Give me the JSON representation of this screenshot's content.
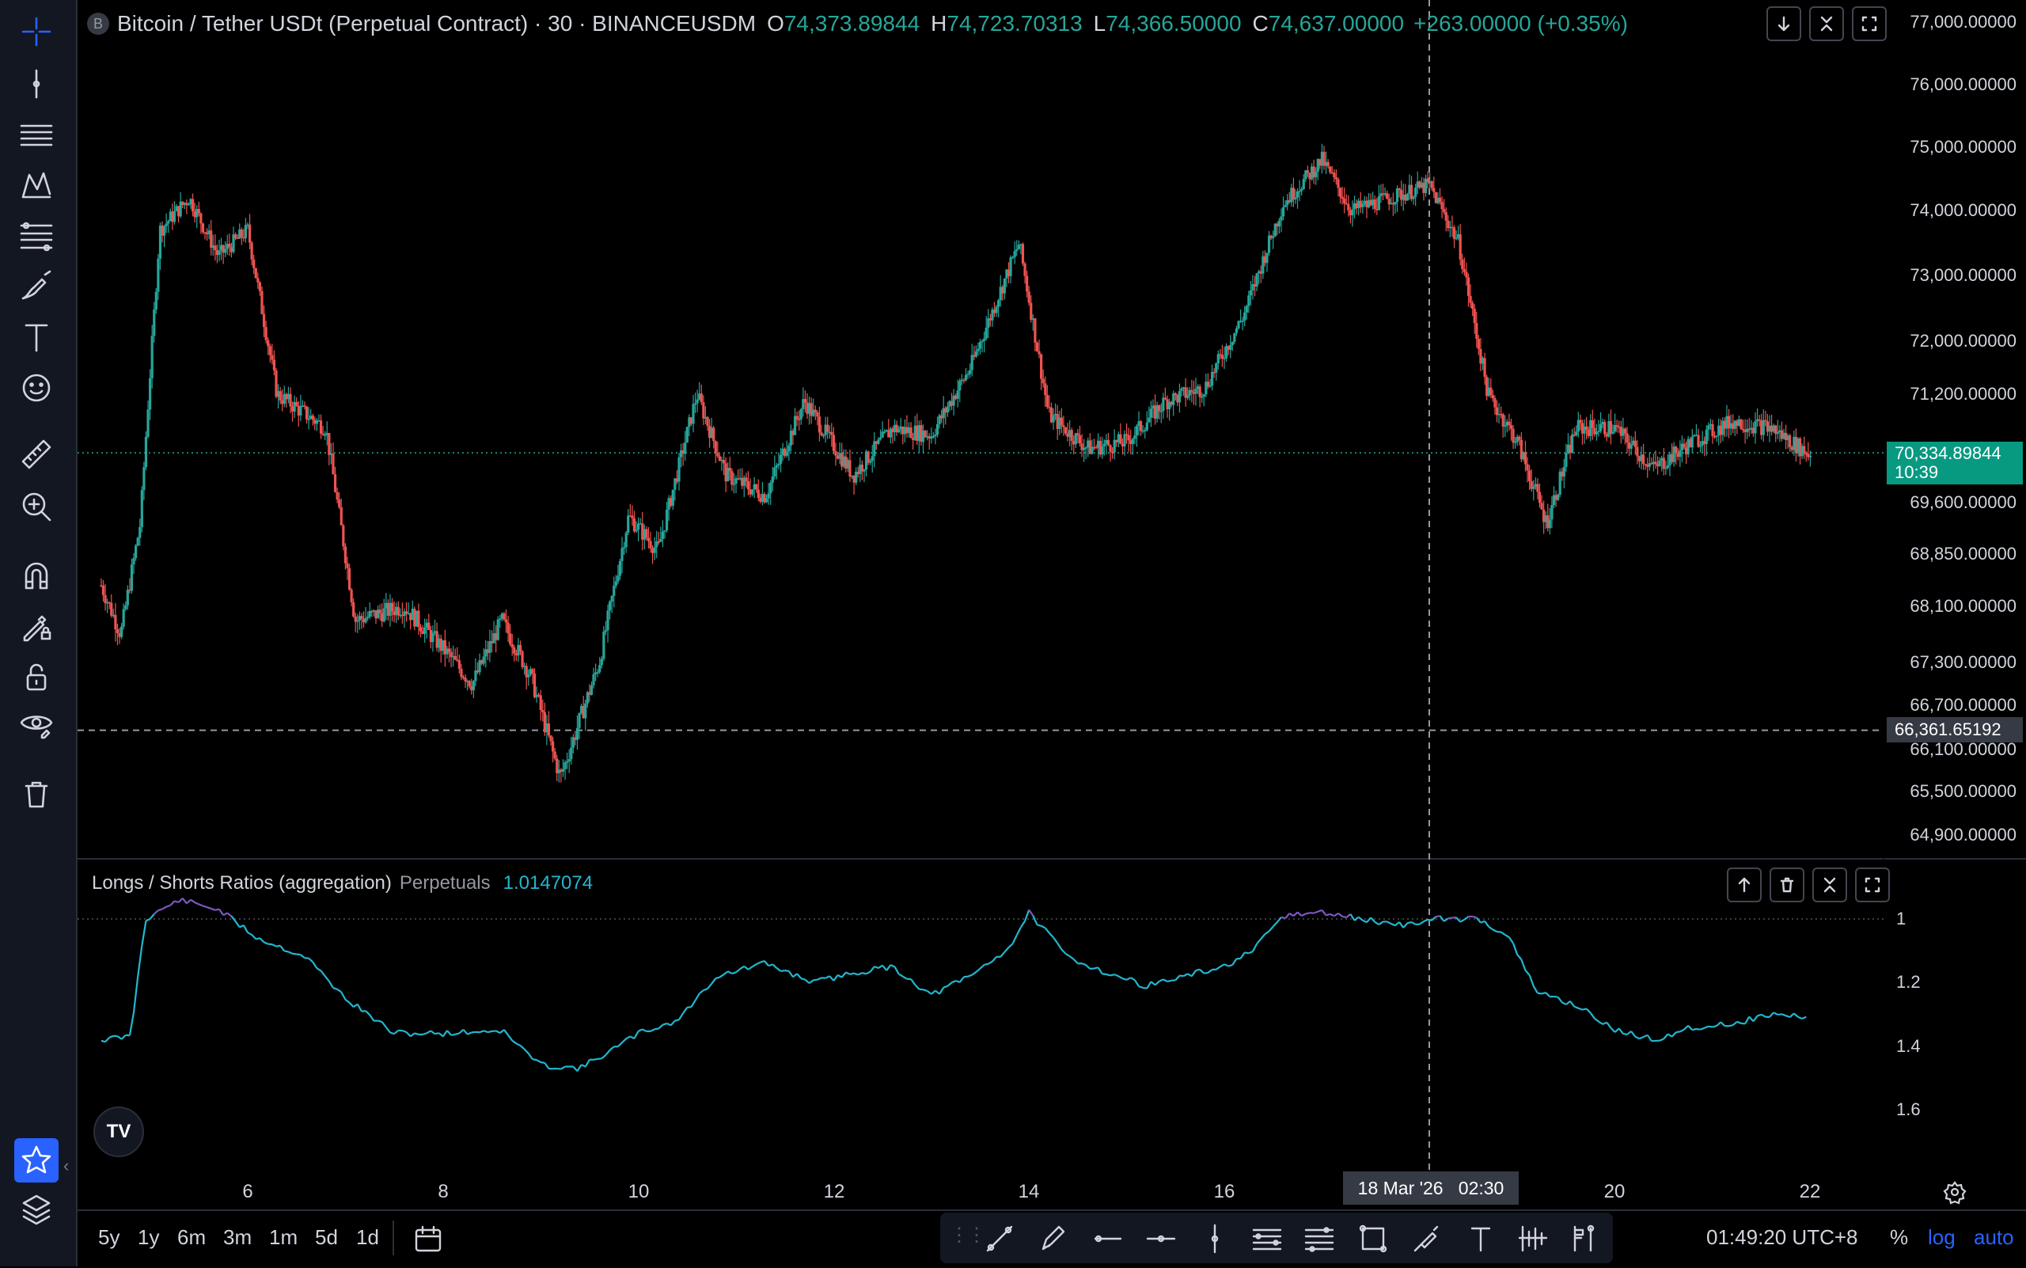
{
  "header": {
    "symbol_icon": "B",
    "title": "Bitcoin / Tether USDt (Perpetual Contract) · 30 · BINANCEUSDM",
    "open_label": "O",
    "open": "74,373.89844",
    "high_label": "H",
    "high": "74,723.70313",
    "low_label": "L",
    "low": "74,366.50000",
    "close_label": "C",
    "close": "74,637.00000",
    "change": "+263.00000 (+0.35%)"
  },
  "price_axis": {
    "labels": [
      "77,000.00000",
      "76,000.00000",
      "75,000.00000",
      "74,000.00000",
      "73,000.00000",
      "72,000.00000",
      "71,200.00000",
      "69,600.00000",
      "68,850.00000",
      "68,100.00000",
      "67,300.00000",
      "66,700.00000",
      "66,100.00000",
      "65,500.00000",
      "64,900.00000"
    ],
    "last_price": "70,334.89844",
    "countdown": "10:39",
    "crosshair_price": "66,361.65192"
  },
  "indicator": {
    "name": "Longs / Shorts Ratios (aggregation)",
    "source": "Perpetuals",
    "value": "1.0147074",
    "axis_labels": [
      "1",
      "1.2",
      "1.4",
      "1.6"
    ]
  },
  "time_axis": {
    "labels": [
      "6",
      "8",
      "10",
      "12",
      "14",
      "16",
      "20",
      "22"
    ],
    "crosshair_time": "18 Mar '26   02:30"
  },
  "timeframes": [
    "5y",
    "1y",
    "6m",
    "3m",
    "1m",
    "5d",
    "1d"
  ],
  "footer": {
    "clock": "01:49:20 UTC+8",
    "percent": "%",
    "log": "log",
    "auto": "auto"
  },
  "logo": "TV",
  "colors": {
    "up": "#26a69a",
    "down": "#ef5350",
    "ratio_line": "#22b8cf",
    "ratio_high": "#7e57c2",
    "accent": "#2962ff",
    "last_price_bg": "#089981"
  },
  "left_toolbar_icons": [
    "crosshair-icon",
    "vertical-line-icon",
    "horizontal-lines-icon",
    "pattern-icon",
    "fib-retracement-icon",
    "brush-icon",
    "text-icon",
    "emoji-icon",
    "ruler-icon",
    "zoom-in-icon",
    "magnet-icon",
    "lock-drawing-icon",
    "unlock-icon",
    "eye-icon",
    "trash-icon",
    "favorite-star-icon",
    "layers-icon"
  ],
  "chart_data": {
    "type": "candlestick",
    "x_labels": [
      "6",
      "8",
      "10",
      "12",
      "14",
      "16",
      "20",
      "22"
    ],
    "approx_path_price": [
      [
        4.5,
        68400
      ],
      [
        4.7,
        67700
      ],
      [
        4.9,
        69300
      ],
      [
        5.1,
        73700
      ],
      [
        5.4,
        74200
      ],
      [
        5.7,
        73300
      ],
      [
        6.0,
        73700
      ],
      [
        6.3,
        71200
      ],
      [
        6.8,
        70700
      ],
      [
        7.1,
        67900
      ],
      [
        7.6,
        68100
      ],
      [
        8.0,
        67500
      ],
      [
        8.3,
        67000
      ],
      [
        8.6,
        67900
      ],
      [
        8.9,
        67100
      ],
      [
        9.2,
        65700
      ],
      [
        9.6,
        67300
      ],
      [
        9.9,
        69400
      ],
      [
        10.2,
        68900
      ],
      [
        10.6,
        71200
      ],
      [
        10.9,
        70000
      ],
      [
        11.3,
        69700
      ],
      [
        11.7,
        71100
      ],
      [
        12.2,
        70000
      ],
      [
        12.6,
        70700
      ],
      [
        13.0,
        70600
      ],
      [
        13.4,
        71600
      ],
      [
        13.9,
        73500
      ],
      [
        14.2,
        70900
      ],
      [
        14.6,
        70400
      ],
      [
        15.0,
        70500
      ],
      [
        15.4,
        71100
      ],
      [
        15.8,
        71300
      ],
      [
        16.2,
        72400
      ],
      [
        16.6,
        74100
      ],
      [
        17.0,
        74800
      ],
      [
        17.3,
        74000
      ],
      [
        17.7,
        74200
      ],
      [
        18.1,
        74400
      ],
      [
        18.4,
        73500
      ],
      [
        18.7,
        71200
      ],
      [
        19.0,
        70500
      ],
      [
        19.3,
        69300
      ],
      [
        19.6,
        70700
      ],
      [
        20.0,
        70700
      ],
      [
        20.4,
        70100
      ],
      [
        20.8,
        70500
      ],
      [
        21.2,
        70800
      ],
      [
        21.6,
        70700
      ],
      [
        22.0,
        70300
      ]
    ],
    "indicator_series": {
      "name": "Longs / Shorts Ratios (aggregation)",
      "approx_path": [
        [
          4.5,
          1.38
        ],
        [
          4.8,
          1.37
        ],
        [
          4.95,
          1.0
        ],
        [
          5.3,
          0.94
        ],
        [
          5.7,
          0.97
        ],
        [
          6.1,
          1.06
        ],
        [
          6.6,
          1.12
        ],
        [
          7.0,
          1.25
        ],
        [
          7.5,
          1.36
        ],
        [
          8.0,
          1.36
        ],
        [
          8.6,
          1.35
        ],
        [
          9.0,
          1.46
        ],
        [
          9.4,
          1.47
        ],
        [
          9.8,
          1.4
        ],
        [
          10.0,
          1.36
        ],
        [
          10.4,
          1.32
        ],
        [
          10.8,
          1.18
        ],
        [
          11.3,
          1.14
        ],
        [
          11.8,
          1.2
        ],
        [
          12.2,
          1.17
        ],
        [
          12.6,
          1.15
        ],
        [
          13.0,
          1.24
        ],
        [
          13.4,
          1.18
        ],
        [
          13.8,
          1.09
        ],
        [
          14.0,
          0.98
        ],
        [
          14.4,
          1.12
        ],
        [
          14.8,
          1.17
        ],
        [
          15.2,
          1.21
        ],
        [
          15.6,
          1.18
        ],
        [
          16.0,
          1.15
        ],
        [
          16.3,
          1.1
        ],
        [
          16.6,
          0.99
        ],
        [
          17.0,
          0.98
        ],
        [
          17.4,
          1.0
        ],
        [
          17.8,
          1.02
        ],
        [
          18.2,
          1.0
        ],
        [
          18.6,
          1.0
        ],
        [
          18.9,
          1.05
        ],
        [
          19.2,
          1.23
        ],
        [
          19.6,
          1.27
        ],
        [
          20.0,
          1.35
        ],
        [
          20.4,
          1.38
        ],
        [
          20.8,
          1.34
        ],
        [
          21.2,
          1.33
        ],
        [
          21.6,
          1.3
        ],
        [
          22.0,
          1.31
        ]
      ],
      "threshold": 1.0
    },
    "grid": false
  }
}
